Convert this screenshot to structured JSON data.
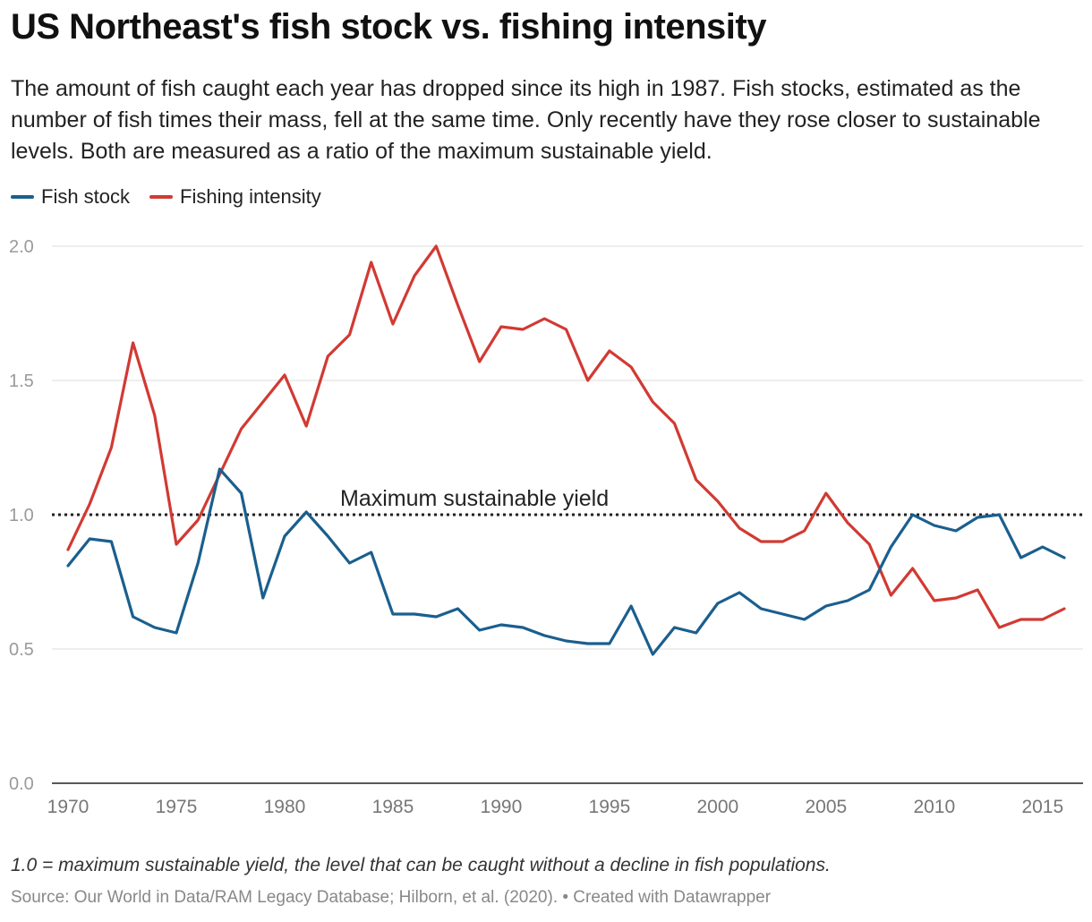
{
  "title": "US Northeast's fish stock vs. fishing intensity",
  "subtitle": "The amount of fish caught each year has dropped since its high in 1987. Fish stocks, estimated as the number of fish times their mass, fell at the same time. Only recently have they rose closer to sustainable levels. Both are measured as a ratio of the maximum sustainable yield.",
  "note": "1.0 = maximum sustainable yield, the level that can be caught without a decline in fish populations.",
  "source": "Source: Our World in Data/RAM Legacy Database; Hilborn, et al. (2020). • Created with Datawrapper",
  "chart_data": {
    "type": "line",
    "xlim": [
      1970,
      2016
    ],
    "ylim": [
      0,
      2.0
    ],
    "x_ticks": [
      1970,
      1975,
      1980,
      1985,
      1990,
      1995,
      2000,
      2005,
      2010,
      2015
    ],
    "y_ticks": [
      "0.0",
      "0.5",
      "1.0",
      "1.5",
      "2.0"
    ],
    "grid": true,
    "legend_position": "top-left",
    "reference_line": {
      "value": 1.0,
      "label": "Maximum sustainable yield",
      "style": "dotted"
    },
    "x": [
      1970,
      1971,
      1972,
      1973,
      1974,
      1975,
      1976,
      1977,
      1978,
      1979,
      1980,
      1981,
      1982,
      1983,
      1984,
      1985,
      1986,
      1987,
      1988,
      1989,
      1990,
      1991,
      1992,
      1993,
      1994,
      1995,
      1996,
      1997,
      1998,
      1999,
      2000,
      2001,
      2002,
      2003,
      2004,
      2005,
      2006,
      2007,
      2008,
      2009,
      2010,
      2011,
      2012,
      2013,
      2014,
      2015,
      2016
    ],
    "series": [
      {
        "name": "Fish stock",
        "color": "#1a5f8e",
        "values": [
          0.81,
          0.91,
          0.9,
          0.62,
          0.58,
          0.56,
          0.82,
          1.17,
          1.08,
          0.69,
          0.92,
          1.01,
          0.92,
          0.82,
          0.86,
          0.63,
          0.63,
          0.62,
          0.65,
          0.57,
          0.59,
          0.58,
          0.55,
          0.53,
          0.52,
          0.52,
          0.66,
          0.48,
          0.58,
          0.56,
          0.67,
          0.71,
          0.65,
          0.63,
          0.61,
          0.66,
          0.68,
          0.72,
          0.88,
          1.0,
          0.96,
          0.94,
          0.99,
          1.0,
          0.84,
          0.88,
          0.84
        ]
      },
      {
        "name": "Fishing intensity",
        "color": "#d13a33",
        "values": [
          0.87,
          1.04,
          1.25,
          1.64,
          1.37,
          0.89,
          0.98,
          1.15,
          1.32,
          1.42,
          1.52,
          1.33,
          1.59,
          1.67,
          1.94,
          1.71,
          1.89,
          2.0,
          1.78,
          1.57,
          1.7,
          1.69,
          1.73,
          1.69,
          1.5,
          1.61,
          1.55,
          1.42,
          1.34,
          1.13,
          1.05,
          0.95,
          0.9,
          0.9,
          0.94,
          1.08,
          0.97,
          0.89,
          0.7,
          0.8,
          0.68,
          0.69,
          0.72,
          0.58,
          0.61,
          0.61,
          0.65
        ]
      }
    ]
  }
}
